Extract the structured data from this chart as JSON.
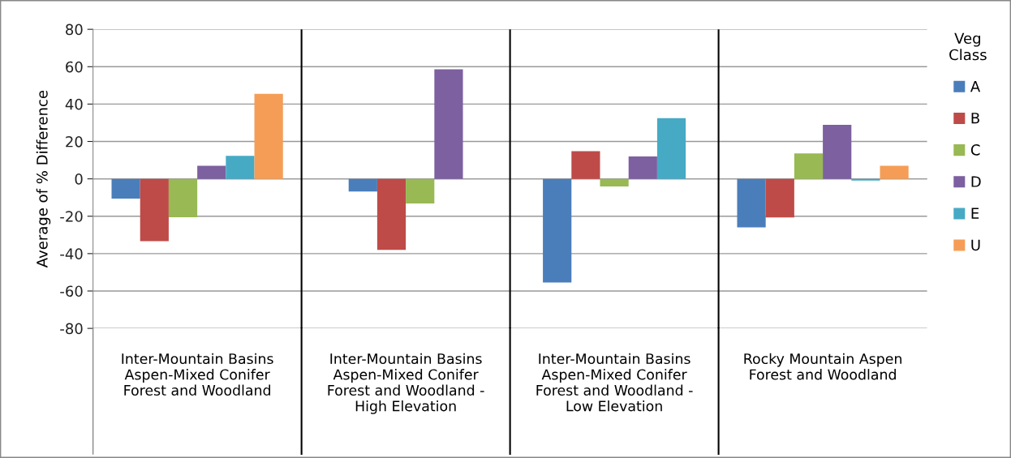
{
  "chart_data": {
    "type": "bar",
    "ylabel": "Average of % Difference",
    "legend_title": "Veg\nClass",
    "categories": [
      "Inter-Mountain Basins\nAspen-Mixed Conifer\nForest and Woodland",
      "Inter-Mountain Basins\nAspen-Mixed Conifer\nForest and Woodland -\nHigh Elevation",
      "Inter-Mountain Basins\nAspen-Mixed Conifer\nForest and Woodland -\nLow Elevation",
      "Rocky Mountain Aspen\nForest and Woodland"
    ],
    "series": [
      {
        "name": "A",
        "color": "#4a7ebb",
        "values": [
          -10.6,
          -6.8,
          -55.4,
          -26
        ]
      },
      {
        "name": "B",
        "color": "#be4b48",
        "values": [
          -33.3,
          -38,
          14.8,
          -20.7
        ]
      },
      {
        "name": "C",
        "color": "#98b954",
        "values": [
          -20.5,
          -13.2,
          -4.1,
          13.6
        ]
      },
      {
        "name": "D",
        "color": "#7d60a0",
        "values": [
          7,
          58.6,
          12,
          28.9
        ]
      },
      {
        "name": "E",
        "color": "#46aac5",
        "values": [
          12.3,
          null,
          32.5,
          -0.9
        ]
      },
      {
        "name": "U",
        "color": "#f59d56",
        "values": [
          45.5,
          null,
          null,
          7
        ]
      }
    ],
    "ylim": [
      -80,
      80
    ],
    "yticks": [
      -80,
      -60,
      -40,
      -20,
      0,
      20,
      40,
      60,
      80
    ],
    "grid": "y",
    "legend": "right"
  }
}
